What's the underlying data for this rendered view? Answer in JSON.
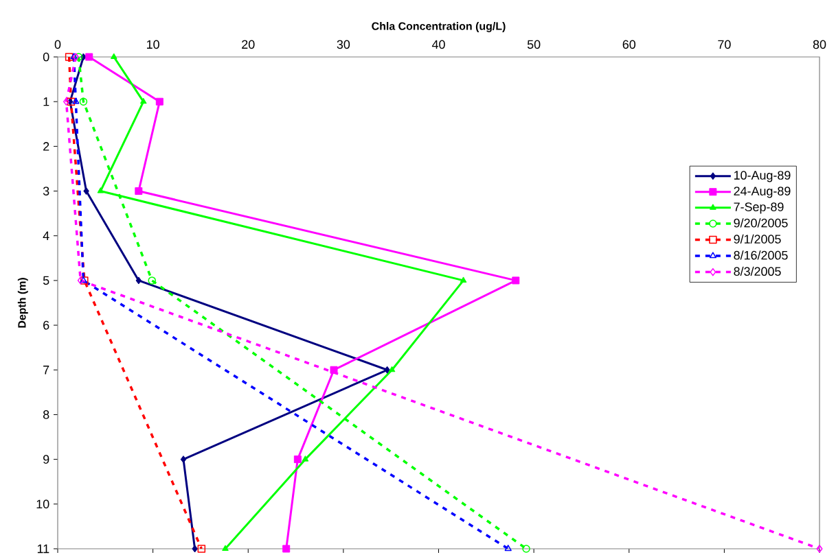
{
  "chart_data": {
    "type": "line",
    "xlabel": "Chla Concentration (ug/L)",
    "ylabel": "Depth (m)",
    "xlim": [
      0,
      80
    ],
    "xticks": [
      0,
      10,
      20,
      30,
      40,
      50,
      60,
      70,
      80
    ],
    "ylim": [
      11,
      0
    ],
    "yticks": [
      0,
      1,
      2,
      3,
      4,
      5,
      6,
      7,
      8,
      9,
      10,
      11
    ],
    "grid": false,
    "legend": "right",
    "series": [
      {
        "name": "10-Aug-89",
        "color": "#000080",
        "marker": "diamond",
        "line_style": "solid",
        "x": [
          2.7,
          1.3,
          3.0,
          8.5,
          34.6,
          13.2,
          14.4
        ],
        "values": [
          0,
          1,
          3,
          5,
          7,
          9,
          11
        ]
      },
      {
        "name": "24-Aug-89",
        "color": "#ff00ff",
        "marker": "square",
        "line_style": "solid",
        "x": [
          3.3,
          10.7,
          8.5,
          48.1,
          29.0,
          25.2,
          24.0
        ],
        "values": [
          0,
          1,
          3,
          5,
          7,
          9,
          11
        ]
      },
      {
        "name": "7-Sep-89",
        "color": "#00ff00",
        "marker": "triangle",
        "line_style": "solid",
        "x": [
          5.9,
          9.0,
          4.5,
          42.6,
          35.1,
          26.0,
          17.6
        ],
        "values": [
          0,
          1,
          3,
          5,
          7,
          9,
          11
        ]
      },
      {
        "name": "9/20/2005",
        "color": "#00ff00",
        "marker": "circle",
        "line_style": "dotted",
        "x": [
          2.2,
          2.7,
          9.9,
          49.2
        ],
        "values": [
          0,
          1,
          5,
          11
        ]
      },
      {
        "name": "9/1/2005",
        "color": "#ff0000",
        "marker": "square",
        "line_style": "dotted",
        "x": [
          1.2,
          1.4,
          2.8,
          15.1
        ],
        "values": [
          0,
          1,
          5,
          11
        ]
      },
      {
        "name": "8/16/2005",
        "color": "#0000ff",
        "marker": "triangle",
        "line_style": "dotted",
        "x": [
          1.7,
          1.9,
          2.7,
          47.3
        ],
        "values": [
          0,
          1,
          5,
          11
        ]
      },
      {
        "name": "8/3/2005",
        "color": "#ff00ff",
        "marker": "diamond",
        "line_style": "dotted",
        "x": [
          1.9,
          0.9,
          2.4,
          80
        ],
        "values": [
          0,
          1,
          5,
          11
        ]
      }
    ]
  }
}
